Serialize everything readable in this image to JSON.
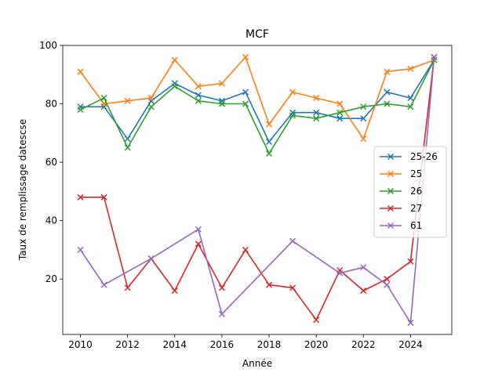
{
  "chart_data": {
    "type": "line",
    "title": "MCF",
    "xlabel": "Année",
    "ylabel": "Taux de remplissage datescse",
    "xlim": [
      2009.25,
      2025.75
    ],
    "ylim": [
      1,
      100
    ],
    "xticks": [
      2010,
      2012,
      2014,
      2016,
      2018,
      2020,
      2022,
      2024
    ],
    "yticks": [
      20,
      40,
      60,
      80,
      100
    ],
    "grid": false,
    "legend_position": "center-right",
    "marker": "x",
    "series": [
      {
        "name": "25-26",
        "color": "#1f77b4",
        "points": [
          [
            2010,
            79
          ],
          [
            2011,
            79
          ],
          [
            2012,
            68
          ],
          [
            2013,
            81
          ],
          [
            2014,
            87
          ],
          [
            2015,
            83
          ],
          [
            2016,
            81
          ],
          [
            2017,
            84
          ],
          [
            2018,
            67
          ],
          [
            2019,
            77
          ],
          [
            2020,
            77
          ],
          [
            2021,
            75
          ],
          [
            2022,
            75
          ],
          [
            2023,
            84
          ],
          [
            2024,
            82
          ],
          [
            2025,
            95
          ]
        ]
      },
      {
        "name": "25",
        "color": "#ff7f0e",
        "points": [
          [
            2010,
            91
          ],
          [
            2011,
            80
          ],
          [
            2012,
            81
          ],
          [
            2013,
            82
          ],
          [
            2014,
            95
          ],
          [
            2015,
            86
          ],
          [
            2016,
            87
          ],
          [
            2017,
            96
          ],
          [
            2018,
            73
          ],
          [
            2019,
            84
          ],
          [
            2020,
            82
          ],
          [
            2021,
            80
          ],
          [
            2022,
            68
          ],
          [
            2023,
            91
          ],
          [
            2024,
            92
          ],
          [
            2025,
            95
          ]
        ]
      },
      {
        "name": "26",
        "color": "#2ca02c",
        "points": [
          [
            2010,
            78
          ],
          [
            2011,
            82
          ],
          [
            2012,
            65
          ],
          [
            2013,
            79
          ],
          [
            2014,
            86
          ],
          [
            2015,
            81
          ],
          [
            2016,
            80
          ],
          [
            2017,
            80
          ],
          [
            2018,
            63
          ],
          [
            2019,
            76
          ],
          [
            2020,
            75
          ],
          [
            2021,
            77
          ],
          [
            2022,
            79
          ],
          [
            2023,
            80
          ],
          [
            2024,
            79
          ],
          [
            2025,
            95
          ]
        ]
      },
      {
        "name": "27",
        "color": "#d62728",
        "points": [
          [
            2010,
            48
          ],
          [
            2011,
            48
          ],
          [
            2012,
            17
          ],
          [
            2013,
            27
          ],
          [
            2014,
            16
          ],
          [
            2015,
            32
          ],
          [
            2016,
            17
          ],
          [
            2017,
            30
          ],
          [
            2018,
            18
          ],
          [
            2019,
            17
          ],
          [
            2020,
            6
          ],
          [
            2021,
            23
          ],
          [
            2022,
            16
          ],
          [
            2023,
            20
          ],
          [
            2024,
            26
          ],
          [
            2025,
            96
          ]
        ]
      },
      {
        "name": "61",
        "color": "#9467bd",
        "points": [
          [
            2010,
            30
          ],
          [
            2011,
            18
          ],
          [
            2013,
            27
          ],
          [
            2015,
            37
          ],
          [
            2016,
            8
          ],
          [
            2019,
            33
          ],
          [
            2021,
            22
          ],
          [
            2022,
            24
          ],
          [
            2023,
            18
          ],
          [
            2024,
            5
          ],
          [
            2025,
            96
          ]
        ]
      }
    ]
  }
}
